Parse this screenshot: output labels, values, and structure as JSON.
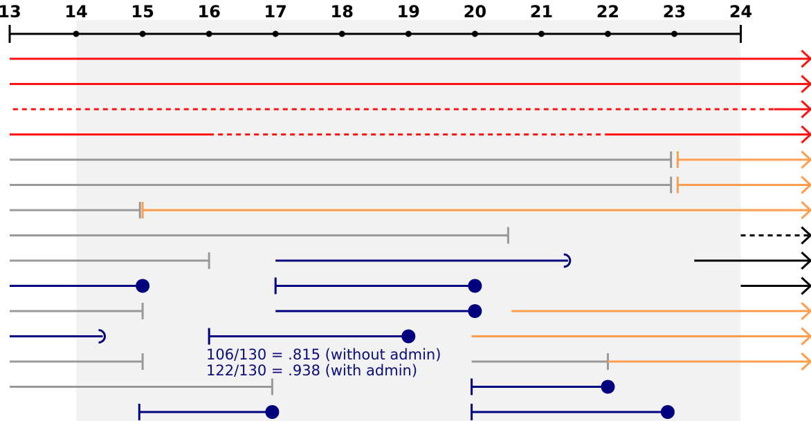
{
  "axis": {
    "labels": [
      "13",
      "14",
      "15",
      "16",
      "17",
      "18",
      "19",
      "20",
      "21",
      "22",
      "23",
      "24"
    ],
    "start": 13,
    "end": 24
  },
  "shaded_range": [
    14,
    24
  ],
  "colors": {
    "red": "#ff1111",
    "gray": "#999999",
    "orange": "#ff9d4f",
    "navy": "#00007f",
    "black": "#000000",
    "shade": "#f2f2f2",
    "note": "#0b0b7a"
  },
  "rows": [
    [
      {
        "from": 13,
        "to": 25.05,
        "color": "red",
        "style": "solid",
        "start": "none",
        "end": "arrow"
      }
    ],
    [
      {
        "from": 13,
        "to": 25.05,
        "color": "red",
        "style": "solid",
        "start": "none",
        "end": "arrow"
      }
    ],
    [
      {
        "from": 13.05,
        "to": 24.5,
        "color": "red",
        "style": "dotted",
        "start": "none",
        "end": "none"
      },
      {
        "from": 24.5,
        "to": 25.05,
        "color": "red",
        "style": "solid",
        "start": "none",
        "end": "arrow"
      }
    ],
    [
      {
        "from": 13,
        "to": 16,
        "color": "red",
        "style": "solid",
        "start": "none",
        "end": "none"
      },
      {
        "from": 16,
        "to": 22,
        "color": "red",
        "style": "dotted",
        "start": "none",
        "end": "none"
      },
      {
        "from": 22,
        "to": 25.05,
        "color": "red",
        "style": "solid",
        "start": "none",
        "end": "arrow"
      }
    ],
    [
      {
        "from": 13,
        "to": 22.95,
        "color": "gray",
        "style": "solid",
        "start": "none",
        "end": "bar"
      },
      {
        "from": 23.05,
        "to": 25.05,
        "color": "orange",
        "style": "solid",
        "start": "bar",
        "end": "arrow"
      }
    ],
    [
      {
        "from": 13,
        "to": 22.95,
        "color": "gray",
        "style": "solid",
        "start": "none",
        "end": "bar"
      },
      {
        "from": 23.05,
        "to": 25.05,
        "color": "orange",
        "style": "solid",
        "start": "bar",
        "end": "arrow"
      }
    ],
    [
      {
        "from": 13,
        "to": 14.96,
        "color": "gray",
        "style": "solid",
        "start": "none",
        "end": "bar"
      },
      {
        "from": 15.0,
        "to": 25.05,
        "color": "orange",
        "style": "solid",
        "start": "bar",
        "end": "arrow"
      }
    ],
    [
      {
        "from": 13,
        "to": 20.5,
        "color": "gray",
        "style": "solid",
        "start": "none",
        "end": "bar"
      },
      {
        "from": 24,
        "to": 25.05,
        "color": "black",
        "style": "dotted",
        "start": "none",
        "end": "arrow"
      }
    ],
    [
      {
        "from": 13,
        "to": 16,
        "color": "gray",
        "style": "solid",
        "start": "none",
        "end": "bar"
      },
      {
        "from": 17,
        "to": 21.4,
        "color": "navy",
        "style": "solid",
        "start": "none",
        "end": "cup"
      },
      {
        "from": 23.3,
        "to": 25.05,
        "color": "black",
        "style": "solid",
        "start": "none",
        "end": "arrow"
      }
    ],
    [
      {
        "from": 13,
        "to": 15,
        "color": "navy",
        "style": "solid",
        "start": "none",
        "end": "dot"
      },
      {
        "from": 17,
        "to": 20,
        "color": "navy",
        "style": "solid",
        "start": "bar",
        "end": "dot"
      },
      {
        "from": 24,
        "to": 25.05,
        "color": "black",
        "style": "solid",
        "start": "none",
        "end": "arrow"
      }
    ],
    [
      {
        "from": 13,
        "to": 15,
        "color": "gray",
        "style": "solid",
        "start": "none",
        "end": "bar"
      },
      {
        "from": 17,
        "to": 20,
        "color": "navy",
        "style": "solid",
        "start": "none",
        "end": "dot"
      },
      {
        "from": 20.55,
        "to": 25.05,
        "color": "orange",
        "style": "solid",
        "start": "none",
        "end": "arrow"
      }
    ],
    [
      {
        "from": 13,
        "to": 14.4,
        "color": "navy",
        "style": "solid",
        "start": "none",
        "end": "cup"
      },
      {
        "from": 16,
        "to": 19,
        "color": "navy",
        "style": "solid",
        "start": "bar",
        "end": "dot"
      },
      {
        "from": 19.95,
        "to": 25.05,
        "color": "orange",
        "style": "solid",
        "start": "none",
        "end": "arrow"
      }
    ],
    [
      {
        "from": 13,
        "to": 15,
        "color": "gray",
        "style": "solid",
        "start": "none",
        "end": "bar"
      },
      {
        "from": 19.95,
        "to": 22,
        "color": "gray",
        "style": "solid",
        "start": "none",
        "end": "bar"
      },
      {
        "from": 22,
        "to": 25.05,
        "color": "orange",
        "style": "solid",
        "start": "none",
        "end": "arrow"
      }
    ],
    [
      {
        "from": 13,
        "to": 16.95,
        "color": "gray",
        "style": "solid",
        "start": "none",
        "end": "bar"
      },
      {
        "from": 19.95,
        "to": 22,
        "color": "navy",
        "style": "solid",
        "start": "bar",
        "end": "dot"
      }
    ],
    [
      {
        "from": 14.95,
        "to": 16.95,
        "color": "navy",
        "style": "solid",
        "start": "bar",
        "end": "dot"
      },
      {
        "from": 19.95,
        "to": 22.9,
        "color": "navy",
        "style": "solid",
        "start": "bar",
        "end": "dot"
      }
    ]
  ],
  "annotation": {
    "line1": "106/130 = .815 (without admin)",
    "line2": "122/130 = .938 (with admin)"
  }
}
